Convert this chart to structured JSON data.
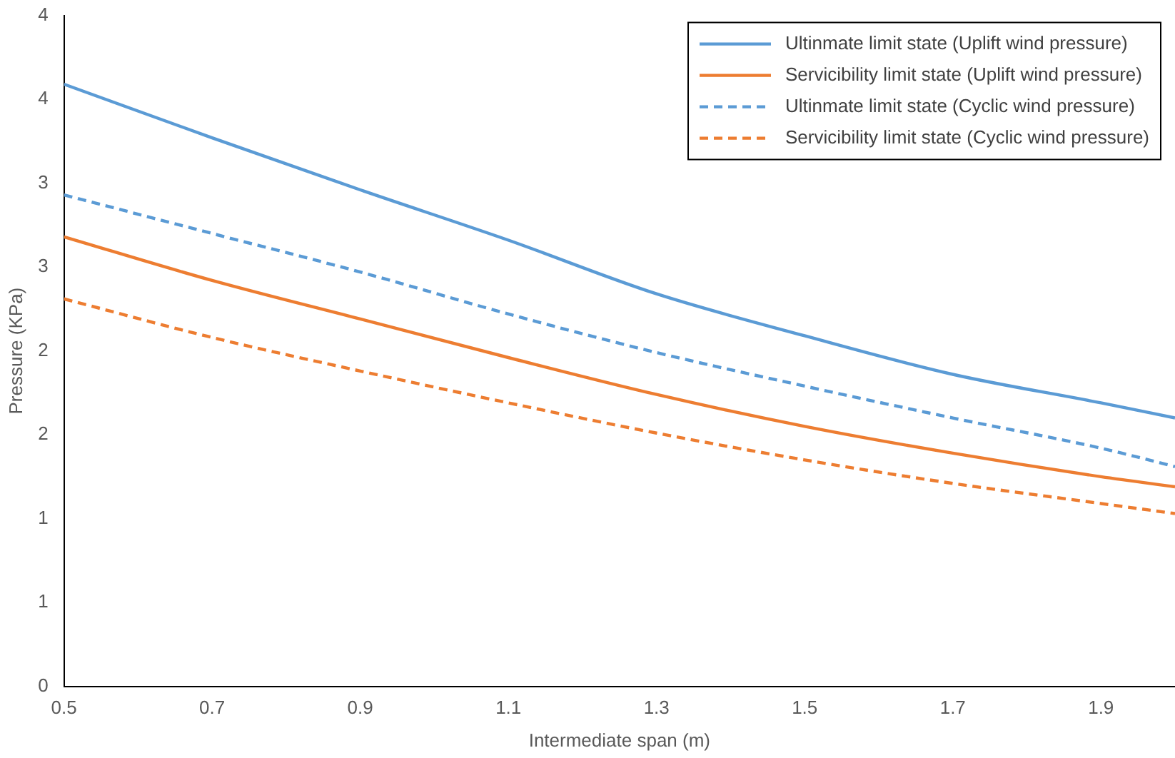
{
  "chart_data": {
    "type": "line",
    "xlabel": "Intermediate span (m)",
    "ylabel": "Pressure (KPa)",
    "x": [
      0.5,
      0.7,
      0.9,
      1.1,
      1.3,
      1.5,
      1.7,
      1.9,
      2.0
    ],
    "series": [
      {
        "name": "Ultinmate limit state (Uplift wind pressure)",
        "color": "#5b9bd5",
        "line_style": "solid",
        "values": [
          3.59,
          3.27,
          2.96,
          2.66,
          2.34,
          2.09,
          1.86,
          1.69,
          1.6
        ]
      },
      {
        "name": "Servicibility limit state (Uplift wind pressure)",
        "color": "#ed7d31",
        "line_style": "solid",
        "values": [
          2.68,
          2.42,
          2.19,
          1.96,
          1.74,
          1.55,
          1.39,
          1.25,
          1.19
        ]
      },
      {
        "name": "Ultinmate limit state (Cyclic wind pressure)",
        "color": "#5b9bd5",
        "line_style": "dashed",
        "values": [
          2.93,
          2.7,
          2.47,
          2.22,
          1.99,
          1.79,
          1.6,
          1.42,
          1.31
        ]
      },
      {
        "name": "Servicibility limit state (Cyclic wind pressure)",
        "color": "#ed7d31",
        "line_style": "dashed",
        "values": [
          2.31,
          2.08,
          1.88,
          1.69,
          1.51,
          1.35,
          1.21,
          1.09,
          1.03
        ]
      }
    ],
    "xlim": [
      0.5,
      2.0
    ],
    "xticks": [
      0.5,
      0.7,
      0.9,
      1.1,
      1.3,
      1.5,
      1.7,
      1.9
    ],
    "ylim": [
      0,
      4
    ],
    "yticks": [
      0,
      {
        "value": 0.5,
        "label": "1"
      },
      1,
      {
        "value": 1.5,
        "label": "2"
      },
      2,
      {
        "value": 2.5,
        "label": "3"
      },
      3,
      {
        "value": 3.5,
        "label": "4"
      },
      4
    ],
    "grid": false,
    "legend": "top right",
    "marker": "none"
  }
}
